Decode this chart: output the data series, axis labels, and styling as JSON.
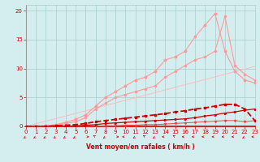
{
  "x": [
    0,
    1,
    2,
    3,
    4,
    5,
    6,
    7,
    8,
    9,
    10,
    11,
    12,
    13,
    14,
    15,
    16,
    17,
    18,
    19,
    20,
    21,
    22,
    23
  ],
  "line_dark1": [
    0,
    0,
    0,
    0.1,
    0.2,
    0.3,
    0.5,
    0.8,
    1.0,
    1.2,
    1.4,
    1.6,
    1.8,
    2.0,
    2.2,
    2.5,
    2.7,
    3.0,
    3.2,
    3.5,
    3.8,
    3.8,
    3.0,
    1.0
  ],
  "line_dark2": [
    0,
    0,
    0,
    0,
    0,
    0.1,
    0.2,
    0.3,
    0.5,
    0.6,
    0.7,
    0.8,
    0.9,
    1.0,
    1.1,
    1.2,
    1.3,
    1.5,
    1.8,
    2.0,
    2.3,
    2.5,
    2.8,
    3.0
  ],
  "line_flat": [
    0,
    0,
    0,
    0,
    0,
    0,
    0,
    0,
    0.1,
    0.1,
    0.2,
    0.2,
    0.3,
    0.3,
    0.4,
    0.5,
    0.6,
    0.7,
    0.8,
    0.9,
    1.0,
    1.0,
    0.8,
    1.0
  ],
  "line_slope_thin": [
    0,
    0.45,
    0.9,
    1.35,
    1.8,
    2.25,
    2.7,
    3.15,
    3.6,
    4.05,
    4.5,
    4.95,
    5.4,
    5.85,
    6.3,
    6.75,
    7.2,
    7.65,
    8.1,
    8.55,
    9.0,
    9.45,
    9.9,
    10.35
  ],
  "line_pink1": [
    0,
    0,
    0.1,
    0.2,
    0.5,
    0.8,
    1.5,
    3.0,
    4.0,
    5.0,
    5.5,
    6.0,
    6.5,
    7.0,
    8.5,
    9.5,
    10.5,
    11.5,
    12.0,
    13.0,
    19.0,
    10.5,
    9.0,
    8.0
  ],
  "line_pink2": [
    0,
    0,
    0.1,
    0.3,
    0.7,
    1.2,
    2.0,
    3.5,
    5.0,
    6.0,
    7.0,
    8.0,
    8.5,
    9.5,
    11.5,
    12.0,
    13.0,
    15.5,
    17.5,
    19.5,
    13.0,
    9.5,
    8.0,
    7.5
  ],
  "background": "#d4eef0",
  "grid_color": "#a8cccc",
  "color_dark": "#cc0000",
  "color_mid": "#ee4444",
  "color_light": "#ff9999",
  "color_vlight": "#ffbbbb",
  "xlabel": "Vent moyen/en rafales ( km/h )",
  "xlim": [
    0,
    23
  ],
  "ylim": [
    0,
    21
  ],
  "yticks": [
    0,
    5,
    10,
    15,
    20
  ]
}
